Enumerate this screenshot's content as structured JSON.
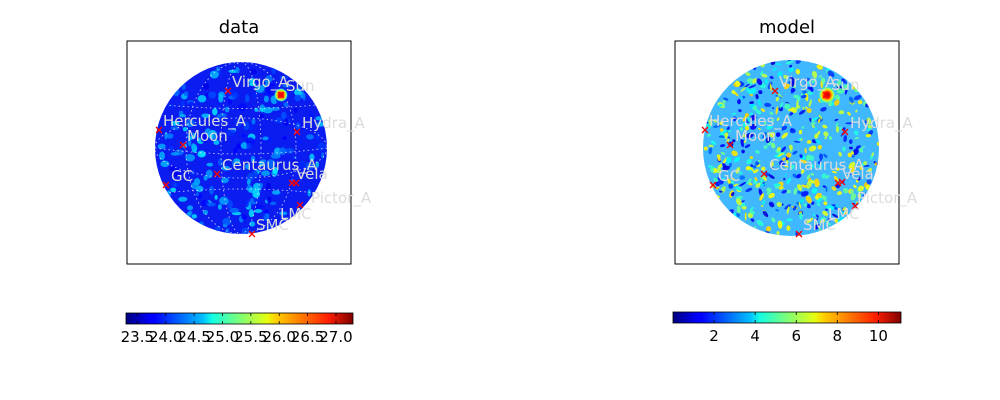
{
  "chart_data": [
    {
      "type": "heatmap",
      "projection": "orthographic sky map",
      "title": "data",
      "colormap": "jet",
      "colorbar": {
        "orientation": "horizontal",
        "range": [
          23.3,
          27.3
        ],
        "tick_labels": [
          "23.5",
          "24.0",
          "24.5",
          "25.0",
          "25.5",
          "26.0",
          "26.5",
          "27.0"
        ]
      },
      "graticule": true,
      "sources": [
        {
          "name": "Virgo_A",
          "label": true
        },
        {
          "name": "Sun",
          "label": true
        },
        {
          "name": "Hercules_A",
          "label": true
        },
        {
          "name": "Moon",
          "label": true
        },
        {
          "name": "Hydra_A",
          "label": true
        },
        {
          "name": "Centaurus_A",
          "label": true
        },
        {
          "name": "GC",
          "label": true
        },
        {
          "name": "Vela",
          "label": true
        },
        {
          "name": "Pictor_A",
          "label": true
        },
        {
          "name": "LMC",
          "label": true
        },
        {
          "name": "SMC",
          "label": true
        }
      ]
    },
    {
      "type": "heatmap",
      "projection": "orthographic sky map",
      "title": "model",
      "colormap": "jet",
      "colorbar": {
        "orientation": "horizontal",
        "range": [
          0,
          11.1
        ],
        "tick_labels": [
          "2",
          "4",
          "6",
          "8",
          "10"
        ]
      },
      "graticule": false,
      "sources": [
        {
          "name": "Virgo_A",
          "label": true
        },
        {
          "name": "Sun",
          "label": true
        },
        {
          "name": "Hercules_A",
          "label": true
        },
        {
          "name": "Moon",
          "label": true
        },
        {
          "name": "Hydra_A",
          "label": true
        },
        {
          "name": "Centaurus_A",
          "label": true
        },
        {
          "name": "GC",
          "label": true
        },
        {
          "name": "Vela",
          "label": true
        },
        {
          "name": "Pictor_A",
          "label": true
        },
        {
          "name": "LMC",
          "label": true
        },
        {
          "name": "SMC",
          "label": true
        }
      ]
    }
  ]
}
